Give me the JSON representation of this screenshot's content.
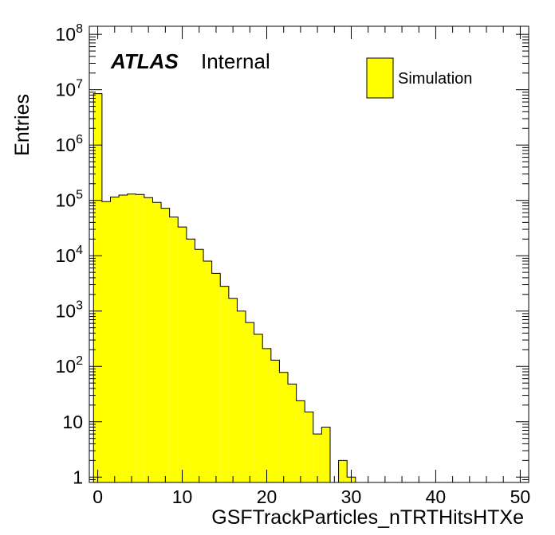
{
  "chart_data": {
    "type": "bar",
    "style": "histogram",
    "x_bin_width": 1,
    "x_start": -0.5,
    "values": [
      8500000,
      95000,
      115000,
      125000,
      130000,
      128000,
      112000,
      92000,
      72000,
      50000,
      33000,
      20000,
      13000,
      8000,
      4800,
      2800,
      1700,
      1000,
      620,
      380,
      210,
      130,
      78,
      48,
      24,
      15,
      6,
      8,
      0,
      2,
      1
    ],
    "xlabel": "GSFTrackParticles_nTRTHitsHTXe",
    "ylabel": "Entries",
    "xlim": [
      -1,
      51
    ],
    "ylim": [
      0.8,
      140000000
    ],
    "y_scale": "log",
    "x_ticks": [
      "0",
      "10",
      "20",
      "30",
      "40",
      "50"
    ],
    "y_ticks": [
      {
        "base": "1",
        "exp": ""
      },
      {
        "base": "10",
        "exp": ""
      },
      {
        "base": "10",
        "exp": "2"
      },
      {
        "base": "10",
        "exp": "3"
      },
      {
        "base": "10",
        "exp": "4"
      },
      {
        "base": "10",
        "exp": "5"
      },
      {
        "base": "10",
        "exp": "6"
      },
      {
        "base": "10",
        "exp": "7"
      },
      {
        "base": "10",
        "exp": "8"
      }
    ],
    "annotation": {
      "bold": "ATLAS",
      "text": "Internal"
    },
    "legend": {
      "position": "top-right",
      "entries": [
        {
          "name": "Simulation",
          "color": "#ffff00"
        }
      ]
    },
    "fill_color": "#ffff00",
    "line_color": "#000000"
  }
}
